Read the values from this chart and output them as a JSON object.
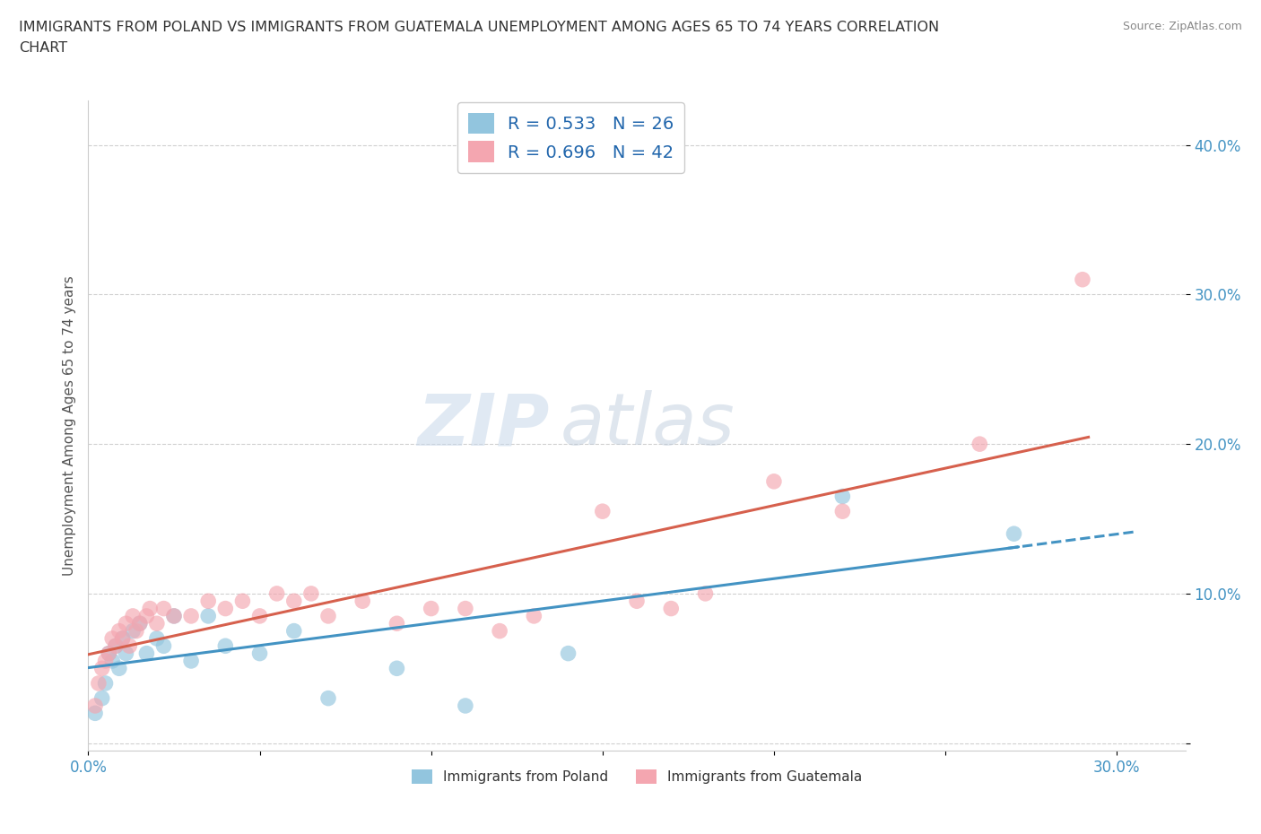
{
  "title_line1": "IMMIGRANTS FROM POLAND VS IMMIGRANTS FROM GUATEMALA UNEMPLOYMENT AMONG AGES 65 TO 74 YEARS CORRELATION",
  "title_line2": "CHART",
  "source": "Source: ZipAtlas.com",
  "ylabel": "Unemployment Among Ages 65 to 74 years",
  "xlim": [
    0.0,
    0.32
  ],
  "ylim": [
    -0.005,
    0.43
  ],
  "xticks": [
    0.0,
    0.05,
    0.1,
    0.15,
    0.2,
    0.25,
    0.3
  ],
  "yticks": [
    0.0,
    0.1,
    0.2,
    0.3,
    0.4
  ],
  "poland_color": "#92c5de",
  "guatemala_color": "#f4a6b0",
  "poland_line_color": "#4393c3",
  "guatemala_line_color": "#d6604d",
  "R_poland": 0.533,
  "N_poland": 26,
  "R_guatemala": 0.696,
  "N_guatemala": 42,
  "legend_label_poland": "Immigrants from Poland",
  "legend_label_guatemala": "Immigrants from Guatemala",
  "background_color": "#ffffff",
  "poland_x": [
    0.002,
    0.004,
    0.005,
    0.006,
    0.007,
    0.008,
    0.009,
    0.01,
    0.011,
    0.013,
    0.015,
    0.017,
    0.02,
    0.022,
    0.025,
    0.03,
    0.035,
    0.04,
    0.05,
    0.06,
    0.07,
    0.09,
    0.11,
    0.14,
    0.22,
    0.27
  ],
  "poland_y": [
    0.02,
    0.03,
    0.04,
    0.06,
    0.055,
    0.065,
    0.05,
    0.07,
    0.06,
    0.075,
    0.08,
    0.06,
    0.07,
    0.065,
    0.085,
    0.055,
    0.085,
    0.065,
    0.06,
    0.075,
    0.03,
    0.05,
    0.025,
    0.06,
    0.165,
    0.14
  ],
  "guatemala_x": [
    0.002,
    0.003,
    0.004,
    0.005,
    0.006,
    0.007,
    0.008,
    0.009,
    0.01,
    0.011,
    0.012,
    0.013,
    0.014,
    0.015,
    0.017,
    0.018,
    0.02,
    0.022,
    0.025,
    0.03,
    0.035,
    0.04,
    0.045,
    0.05,
    0.055,
    0.06,
    0.065,
    0.07,
    0.08,
    0.09,
    0.1,
    0.11,
    0.12,
    0.13,
    0.15,
    0.16,
    0.17,
    0.18,
    0.2,
    0.22,
    0.26,
    0.29
  ],
  "guatemala_y": [
    0.025,
    0.04,
    0.05,
    0.055,
    0.06,
    0.07,
    0.065,
    0.075,
    0.07,
    0.08,
    0.065,
    0.085,
    0.075,
    0.08,
    0.085,
    0.09,
    0.08,
    0.09,
    0.085,
    0.085,
    0.095,
    0.09,
    0.095,
    0.085,
    0.1,
    0.095,
    0.1,
    0.085,
    0.095,
    0.08,
    0.09,
    0.09,
    0.075,
    0.085,
    0.155,
    0.095,
    0.09,
    0.1,
    0.175,
    0.155,
    0.2,
    0.31
  ]
}
